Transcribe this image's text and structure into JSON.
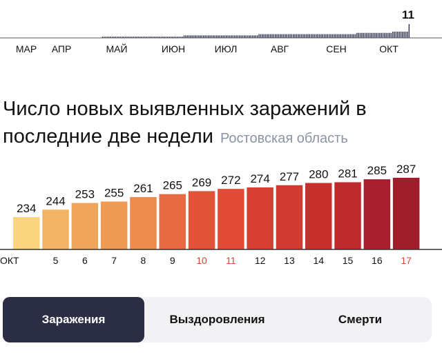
{
  "chart_data": [
    {
      "type": "bar",
      "title": "",
      "months": [
        "МАР",
        "АПР",
        "МАЙ",
        "ИЮН",
        "ИЮЛ",
        "АВГ",
        "СЕН",
        "ОКТ"
      ],
      "peak_label": "11",
      "values": [
        0,
        0,
        0,
        0,
        0,
        0,
        0,
        0,
        0,
        0,
        0,
        0,
        0,
        0,
        0,
        0,
        0,
        0,
        0,
        0,
        0,
        0,
        0,
        0,
        0,
        0,
        0,
        0,
        0,
        0,
        0,
        0,
        0,
        0,
        0,
        0,
        0,
        0,
        0,
        0,
        0,
        0,
        0,
        0,
        0,
        0,
        0,
        0,
        0,
        0,
        0,
        0,
        0,
        0,
        0,
        0,
        0,
        0,
        0,
        0,
        1,
        1,
        1,
        1,
        1,
        1,
        1,
        1,
        1,
        1,
        1,
        1,
        1,
        1,
        1,
        1,
        1,
        1,
        1,
        1,
        1,
        1,
        1,
        1,
        1,
        1,
        1,
        1,
        1,
        1,
        1,
        1,
        1,
        1,
        1,
        1,
        1,
        1,
        1,
        1,
        1,
        1,
        1,
        1,
        1,
        1,
        1,
        1,
        1,
        1,
        2,
        2,
        2,
        2,
        2,
        2,
        2,
        2,
        2,
        2,
        2,
        2,
        2,
        2,
        2,
        2,
        2,
        2,
        2,
        2,
        2,
        2,
        2,
        2,
        2,
        2,
        2,
        2,
        2,
        2,
        2,
        2,
        2,
        2,
        2,
        2,
        2,
        2,
        2,
        2,
        2,
        2,
        2,
        2,
        2,
        2,
        3,
        3,
        3,
        3,
        3,
        3,
        3,
        3,
        3,
        3,
        3,
        3,
        3,
        3,
        3,
        3,
        3,
        3,
        3,
        3,
        3,
        3,
        3,
        3,
        3,
        3,
        3,
        3,
        3,
        3,
        3,
        3,
        3,
        3,
        3,
        3,
        3,
        3,
        3,
        3,
        3,
        3,
        3,
        3,
        3,
        3,
        3,
        3,
        3,
        3,
        3,
        3,
        3,
        3,
        3,
        3,
        3,
        3,
        3,
        3,
        4,
        4,
        4,
        4,
        4,
        4,
        4,
        4,
        4,
        4,
        4,
        4,
        4,
        4,
        4,
        4,
        4,
        4,
        4,
        4,
        4,
        4,
        5,
        5,
        5,
        5,
        5,
        5,
        5,
        5,
        5,
        5,
        11
      ]
    },
    {
      "type": "bar",
      "title": "Число новых выявленных заражений в последние две недели",
      "subtitle": "Ростовская область",
      "categories": [
        "ОКТ",
        "5",
        "6",
        "7",
        "8",
        "9",
        "10",
        "11",
        "12",
        "13",
        "14",
        "15",
        "16",
        "17"
      ],
      "weekend_categories": [
        "10",
        "11",
        "17"
      ],
      "values": [
        234,
        244,
        253,
        255,
        261,
        265,
        269,
        272,
        274,
        277,
        280,
        281,
        285,
        287
      ],
      "colors": [
        "#f8d57e",
        "#f3b466",
        "#efa55b",
        "#ef9b56",
        "#ec8b4e",
        "#e86a43",
        "#e2533a",
        "#e04a37",
        "#d73f33",
        "#d13a30",
        "#c8302e",
        "#bc2a2d",
        "#a71f2e",
        "#a01e2c"
      ]
    }
  ],
  "tabs": [
    {
      "label": "Заражения",
      "active": true
    },
    {
      "label": "Выздоровления",
      "active": false
    },
    {
      "label": "Смерти",
      "active": false
    }
  ]
}
